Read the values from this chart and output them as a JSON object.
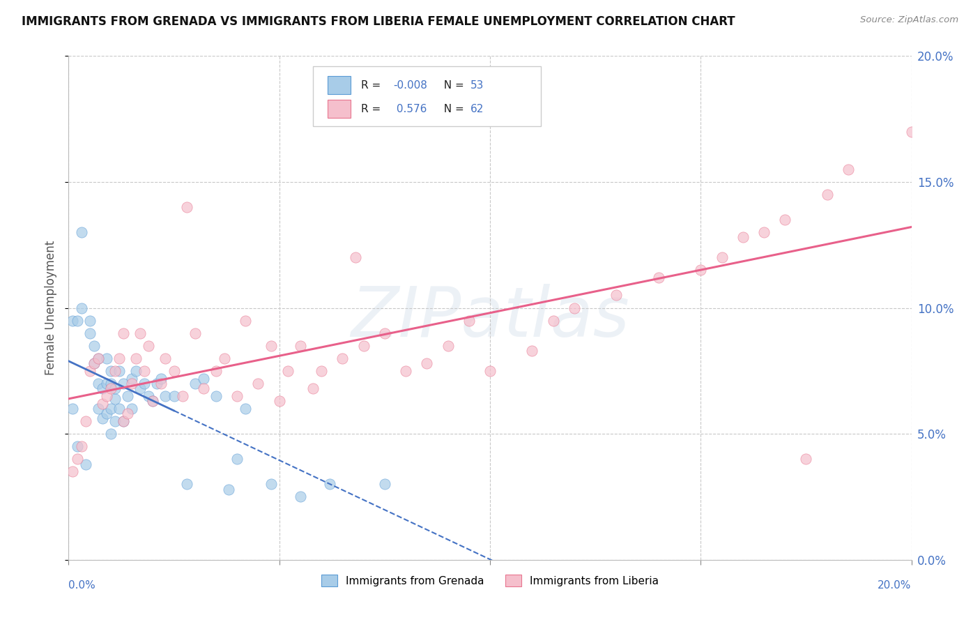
{
  "title": "IMMIGRANTS FROM GRENADA VS IMMIGRANTS FROM LIBERIA FEMALE UNEMPLOYMENT CORRELATION CHART",
  "source": "Source: ZipAtlas.com",
  "ylabel": "Female Unemployment",
  "color_grenada": "#a8cce8",
  "color_grenada_dark": "#5b9bd5",
  "color_liberia": "#f5bfcc",
  "color_liberia_dark": "#e8758f",
  "color_grenada_line": "#4472c4",
  "color_liberia_line": "#e8608a",
  "background": "#ffffff",
  "grid_color": "#c8c8c8",
  "xlim": [
    0.0,
    0.2
  ],
  "ylim": [
    0.0,
    0.2
  ],
  "r1": "-0.008",
  "n1": "53",
  "r2": "0.576",
  "n2": "62",
  "watermark": "ZIPatlas",
  "grenada_x": [
    0.001,
    0.001,
    0.002,
    0.002,
    0.003,
    0.003,
    0.004,
    0.005,
    0.005,
    0.006,
    0.006,
    0.007,
    0.007,
    0.007,
    0.008,
    0.008,
    0.009,
    0.009,
    0.009,
    0.01,
    0.01,
    0.01,
    0.01,
    0.011,
    0.011,
    0.011,
    0.012,
    0.012,
    0.013,
    0.013,
    0.014,
    0.015,
    0.015,
    0.016,
    0.017,
    0.018,
    0.019,
    0.02,
    0.021,
    0.022,
    0.023,
    0.025,
    0.028,
    0.03,
    0.032,
    0.035,
    0.038,
    0.04,
    0.042,
    0.048,
    0.055,
    0.062,
    0.075
  ],
  "grenada_y": [
    0.095,
    0.06,
    0.045,
    0.095,
    0.1,
    0.13,
    0.038,
    0.09,
    0.095,
    0.078,
    0.085,
    0.06,
    0.07,
    0.08,
    0.056,
    0.068,
    0.058,
    0.07,
    0.08,
    0.05,
    0.06,
    0.07,
    0.075,
    0.055,
    0.064,
    0.068,
    0.06,
    0.075,
    0.055,
    0.07,
    0.065,
    0.06,
    0.072,
    0.075,
    0.068,
    0.07,
    0.065,
    0.063,
    0.07,
    0.072,
    0.065,
    0.065,
    0.03,
    0.07,
    0.072,
    0.065,
    0.028,
    0.04,
    0.06,
    0.03,
    0.025,
    0.03,
    0.03
  ],
  "liberia_x": [
    0.001,
    0.002,
    0.003,
    0.004,
    0.005,
    0.006,
    0.007,
    0.008,
    0.009,
    0.01,
    0.011,
    0.012,
    0.013,
    0.013,
    0.014,
    0.015,
    0.016,
    0.017,
    0.018,
    0.019,
    0.02,
    0.022,
    0.023,
    0.025,
    0.027,
    0.028,
    0.03,
    0.032,
    0.035,
    0.037,
    0.04,
    0.042,
    0.045,
    0.048,
    0.05,
    0.052,
    0.055,
    0.058,
    0.06,
    0.065,
    0.068,
    0.07,
    0.075,
    0.08,
    0.085,
    0.09,
    0.095,
    0.1,
    0.11,
    0.115,
    0.12,
    0.13,
    0.14,
    0.15,
    0.155,
    0.16,
    0.165,
    0.17,
    0.175,
    0.18,
    0.185,
    0.2
  ],
  "liberia_y": [
    0.035,
    0.04,
    0.045,
    0.055,
    0.075,
    0.078,
    0.08,
    0.062,
    0.065,
    0.068,
    0.075,
    0.08,
    0.055,
    0.09,
    0.058,
    0.07,
    0.08,
    0.09,
    0.075,
    0.085,
    0.063,
    0.07,
    0.08,
    0.075,
    0.065,
    0.14,
    0.09,
    0.068,
    0.075,
    0.08,
    0.065,
    0.095,
    0.07,
    0.085,
    0.063,
    0.075,
    0.085,
    0.068,
    0.075,
    0.08,
    0.12,
    0.085,
    0.09,
    0.075,
    0.078,
    0.085,
    0.095,
    0.075,
    0.083,
    0.095,
    0.1,
    0.105,
    0.112,
    0.115,
    0.12,
    0.128,
    0.13,
    0.135,
    0.04,
    0.145,
    0.155,
    0.17
  ]
}
